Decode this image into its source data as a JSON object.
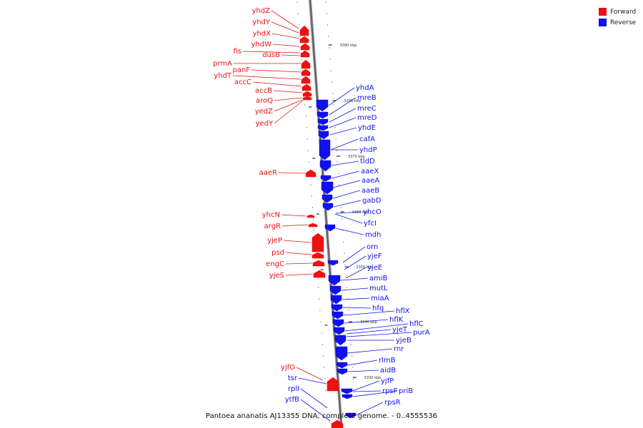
{
  "legend": {
    "forward_label": "Forward",
    "reverse_label": "Reverse",
    "forward_color": "#ee1111",
    "reverse_color": "#1111ee"
  },
  "caption": "Pantoea ananatis AJ13355 DNA, complete genome. - 0..4555536",
  "ticks": [
    "3390 kbp",
    "3380 kbp",
    "3370 kbp",
    "3360 kbp",
    "3350 kbp",
    "3340 kbp",
    "3330 kbp"
  ],
  "forward_genes": [
    "yhdZ",
    "yhdY",
    "yhdX",
    "yhdW",
    "fis",
    "dusB",
    "prmA",
    "panF",
    "yhdT",
    "accC",
    "accB",
    "aroQ",
    "yedZ",
    "yedY",
    "aaeR",
    "yhcN",
    "argR",
    "yjeP",
    "psd",
    "engC",
    "yjeS",
    "yjfO",
    "tsr",
    "rplI",
    "ytfB"
  ],
  "reverse_genes": [
    "yhdA",
    "mreB",
    "mreC",
    "mreD",
    "yhdE",
    "cafA",
    "yhdP",
    "tldD",
    "aaeX",
    "aaeA",
    "aaeB",
    "gabD",
    "yhcO",
    "yfcI",
    "mdh",
    "orn",
    "yjeF",
    "yjeE",
    "amiB",
    "mutL",
    "miaA",
    "hfq",
    "hflX",
    "hflK",
    "hflC",
    "yjeT",
    "purA",
    "yjeB",
    "rnr",
    "rlmB",
    "aidB",
    "yjfP",
    "rpsF",
    "priB",
    "rpsR"
  ]
}
